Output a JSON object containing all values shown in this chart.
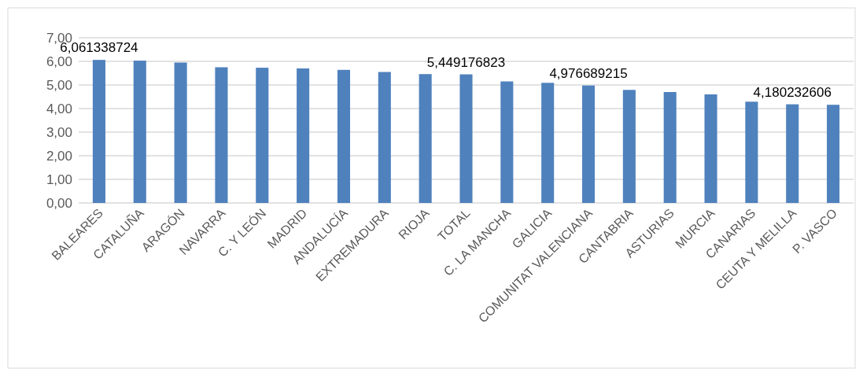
{
  "chart_data": {
    "type": "bar",
    "categories": [
      "BALEARES",
      "CATALUÑA",
      "ARAGÓN",
      "NAVARRA",
      "C. Y LEÓN",
      "MADRID",
      "ANDALUCÍA",
      "EXTREMADURA",
      "RIOJA",
      "TOTAL",
      "C. LA MANCHA",
      "GALICIA",
      "COMUNITAT VALENCIANA",
      "CANTABRIA",
      "ASTURIAS",
      "MURCIA",
      "CANARIAS",
      "CEUTA Y MELILLA",
      "P. VASCO"
    ],
    "values": [
      6.061338724,
      6.03,
      5.95,
      5.75,
      5.73,
      5.7,
      5.64,
      5.55,
      5.46,
      5.449176823,
      5.15,
      5.09,
      4.976689215,
      4.79,
      4.7,
      4.6,
      4.29,
      4.180232606,
      4.16
    ],
    "value_labels": [
      "6,061338724",
      null,
      null,
      null,
      null,
      null,
      null,
      null,
      null,
      "5,449176823",
      null,
      null,
      "4,976689215",
      null,
      null,
      null,
      null,
      "4,180232606",
      null
    ],
    "color": "#4f81bd",
    "ylim": [
      0,
      7
    ],
    "yticks": [
      {
        "value": 0,
        "label": "0,00"
      },
      {
        "value": 1,
        "label": "1,00"
      },
      {
        "value": 2,
        "label": "2,00"
      },
      {
        "value": 3,
        "label": "3,00"
      },
      {
        "value": 4,
        "label": "4,00"
      },
      {
        "value": 5,
        "label": "5,00"
      },
      {
        "value": 6,
        "label": "6,00"
      },
      {
        "value": 7,
        "label": "7,00"
      }
    ],
    "grid": "y"
  }
}
